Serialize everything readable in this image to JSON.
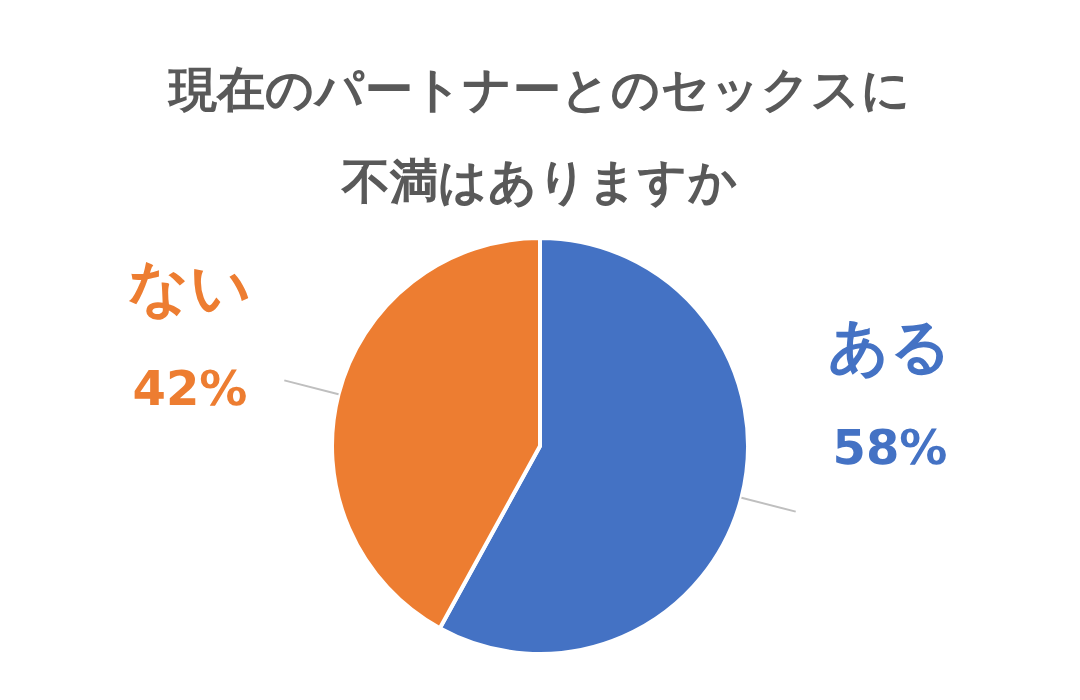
{
  "chart_data": {
    "type": "pie",
    "title": "現在のパートナーとのセックスに不満はありますか",
    "categories": [
      "ある",
      "ない"
    ],
    "values": [
      58,
      42
    ],
    "value_labels": [
      "58%",
      "42%"
    ],
    "colors": [
      "#4472c4",
      "#ed7d31"
    ],
    "legend": false
  }
}
